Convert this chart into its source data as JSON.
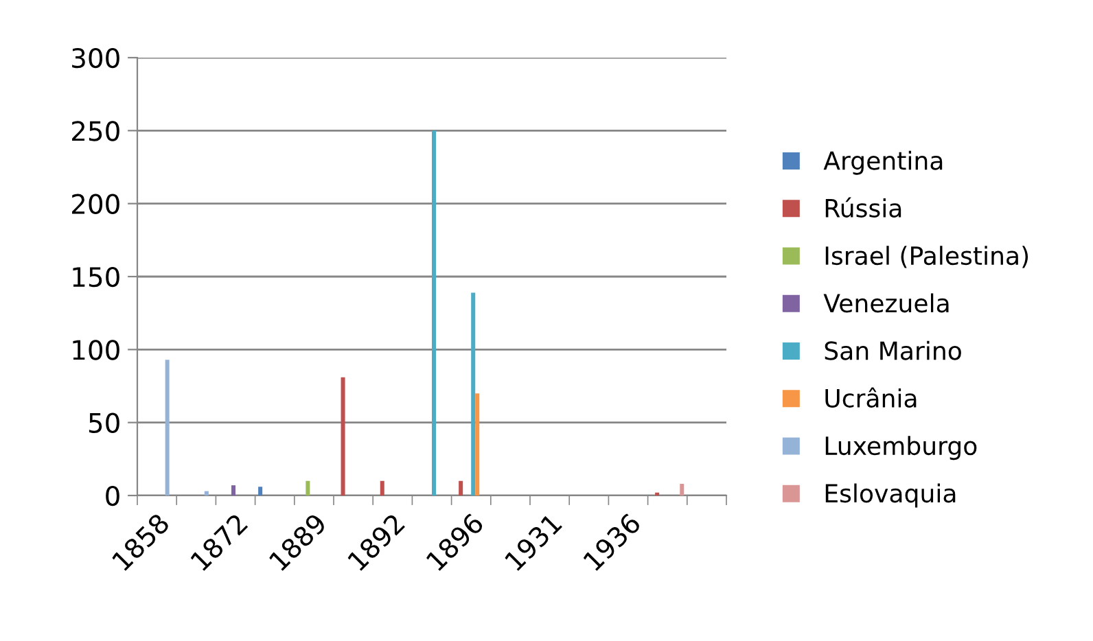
{
  "chart_data": {
    "type": "bar",
    "categories": [
      "1858",
      null,
      "1872",
      null,
      "1889",
      null,
      "1892",
      null,
      "1896",
      null,
      "1931",
      null,
      "1936",
      null,
      null
    ],
    "series": [
      {
        "name": "Argentina",
        "color": "#4f81bd",
        "values": [
          null,
          null,
          null,
          6,
          null,
          null,
          null,
          null,
          null,
          null,
          null,
          null,
          null,
          null,
          null
        ]
      },
      {
        "name": "Rússia",
        "color": "#c0504d",
        "values": [
          null,
          null,
          null,
          null,
          null,
          81,
          10,
          null,
          10,
          null,
          null,
          null,
          null,
          2,
          null
        ]
      },
      {
        "name": "Israel (Palestina)",
        "color": "#9bbb59",
        "values": [
          null,
          null,
          null,
          null,
          10,
          null,
          null,
          null,
          null,
          null,
          null,
          null,
          null,
          null,
          null
        ]
      },
      {
        "name": "Venezuela",
        "color": "#8064a2",
        "values": [
          null,
          null,
          7,
          null,
          null,
          null,
          null,
          null,
          null,
          null,
          null,
          null,
          null,
          null,
          null
        ]
      },
      {
        "name": "San Marino",
        "color": "#4bacc6",
        "values": [
          null,
          null,
          null,
          null,
          null,
          null,
          null,
          250,
          139,
          null,
          null,
          null,
          null,
          null,
          null
        ]
      },
      {
        "name": "Ucrânia",
        "color": "#f79646",
        "values": [
          null,
          null,
          null,
          null,
          null,
          null,
          null,
          null,
          70,
          null,
          null,
          null,
          null,
          null,
          null
        ]
      },
      {
        "name": "Luxemburgo",
        "color": "#95b3d7",
        "values": [
          93,
          3,
          null,
          null,
          null,
          null,
          null,
          null,
          null,
          null,
          null,
          null,
          null,
          null,
          null
        ]
      },
      {
        "name": "Eslovaquia",
        "color": "#d99694",
        "values": [
          null,
          null,
          null,
          null,
          null,
          null,
          null,
          null,
          null,
          null,
          null,
          null,
          null,
          8,
          null
        ]
      }
    ],
    "ylim": [
      0,
      300
    ],
    "yticks": [
      0,
      50,
      100,
      150,
      200,
      250,
      300
    ],
    "grid": "y",
    "legend": "right"
  }
}
